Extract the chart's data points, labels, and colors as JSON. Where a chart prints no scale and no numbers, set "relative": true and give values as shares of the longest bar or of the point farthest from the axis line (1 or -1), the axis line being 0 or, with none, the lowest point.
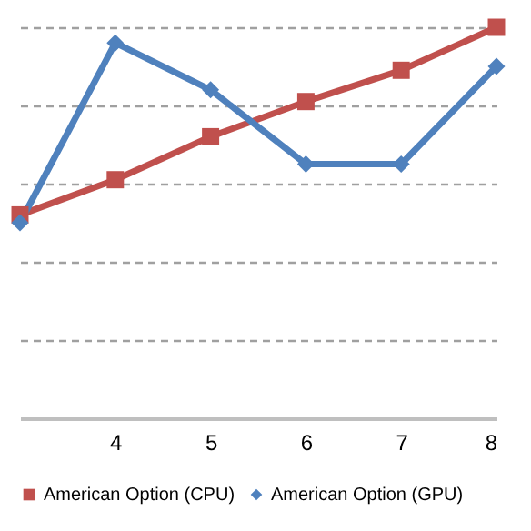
{
  "chart_data": {
    "type": "line",
    "relative": true,
    "categories": [
      null,
      "4",
      "5",
      "6",
      "7",
      "8"
    ],
    "series": [
      {
        "name": "American Option (CPU)",
        "color": "#c0504d",
        "marker": "square",
        "values": [
          0.52,
          0.61,
          0.72,
          0.81,
          0.89,
          1
        ]
      },
      {
        "name": "American Option (GPU)",
        "color": "#4f81bd",
        "marker": "diamond",
        "values": [
          0.5,
          0.96,
          0.84,
          0.65,
          0.65,
          0.9
        ]
      }
    ],
    "grid": "y",
    "legend": "bottom",
    "line_style": "solid"
  }
}
